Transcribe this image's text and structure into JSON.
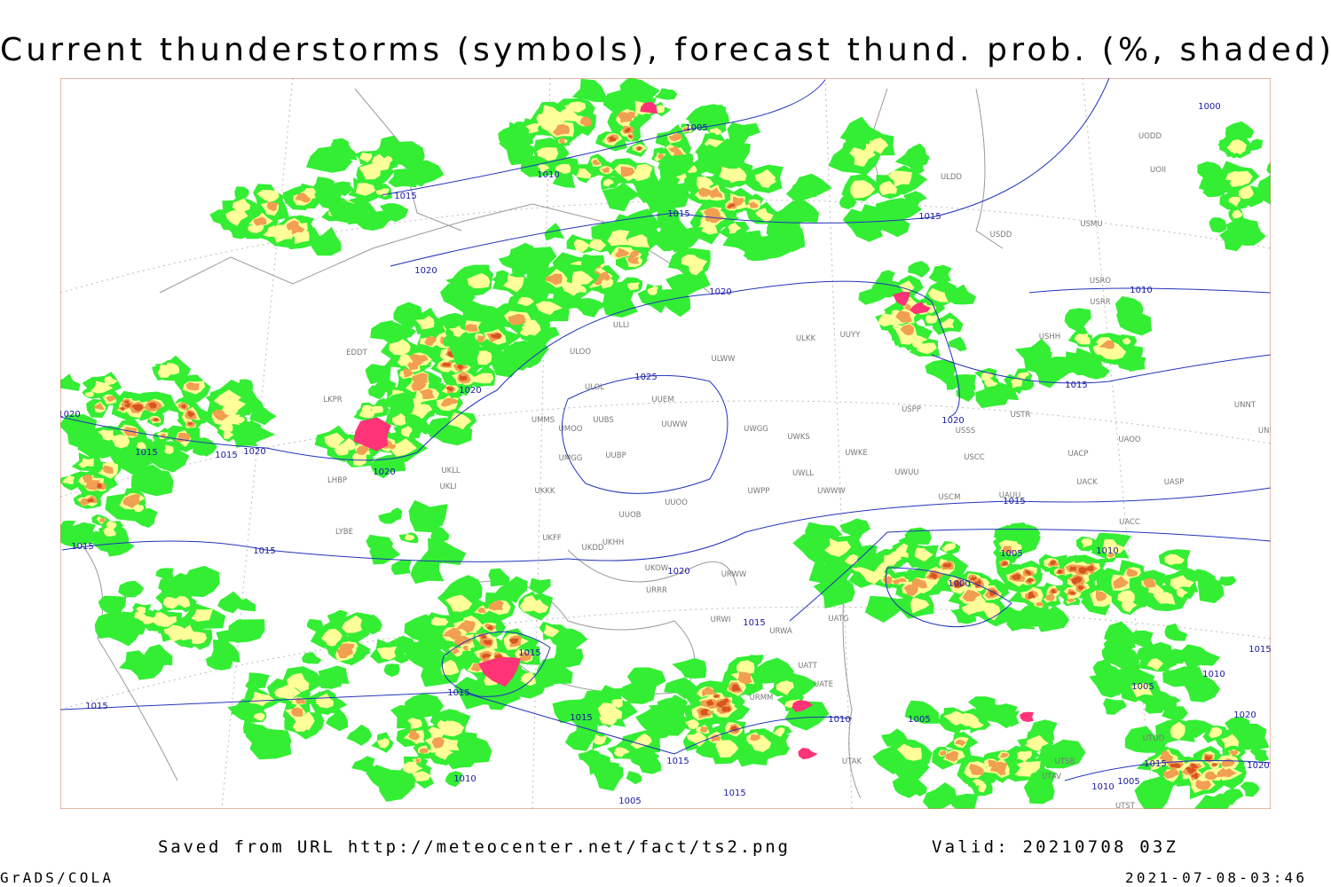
{
  "title": "Current thunderstorms (symbols), forecast thund. prob. (%, shaded)",
  "footer": {
    "saved": "Saved from URL http://meteocenter.net/fact/ts2.png",
    "valid": "Valid: 20210708 03Z",
    "software": "GrADS/COLA",
    "timestamp": "2021-07-08-03:46"
  },
  "isobar_labels": [
    "1005",
    "1010",
    "1015",
    "1015",
    "1020",
    "1020",
    "1015",
    "1000",
    "1010",
    "1025",
    "1020",
    "1020",
    "1015",
    "1015",
    "1020",
    "1020",
    "1015",
    "1020",
    "1015",
    "1015",
    "1015",
    "1020",
    "1005",
    "1010",
    "1000",
    "1015",
    "1015",
    "1015",
    "1015",
    "1015",
    "1010",
    "1005",
    "1005",
    "1010",
    "1015",
    "1020",
    "1015",
    "1010",
    "1005",
    "1015",
    "1015",
    "1005",
    "1010",
    "1020"
  ],
  "stations": [
    "UUEM",
    "UUWW",
    "UUBS",
    "UMMS",
    "UMOO",
    "UUBP",
    "UMGG",
    "UKKK",
    "UUOB",
    "UUOO",
    "UKLL",
    "UKLI",
    "ULOL",
    "ULLI",
    "ULOO",
    "ULWW",
    "ULKK",
    "UUYY",
    "UWGG",
    "UWKS",
    "UWKE",
    "UWUU",
    "UWLL",
    "UWWW",
    "UWPP",
    "USPP",
    "USSS",
    "USCC",
    "USTR",
    "USCM",
    "UAUU",
    "UAOO",
    "UACP",
    "UACK",
    "UASP",
    "UNNT",
    "UNBB",
    "USHH",
    "USRR",
    "USRO",
    "USMU",
    "USDD",
    "ULDD",
    "UODD",
    "UOII",
    "UATG",
    "UATT",
    "UATE",
    "URWA",
    "URWI",
    "URWW",
    "URRR",
    "UKOW",
    "UKFF",
    "UKDD",
    "UKHH",
    "EDDT",
    "LKPR",
    "LHBP",
    "LYBE",
    "UACC",
    "UTAK",
    "URMM",
    "UTDD",
    "UTSB",
    "UTAV",
    "UTST"
  ]
}
